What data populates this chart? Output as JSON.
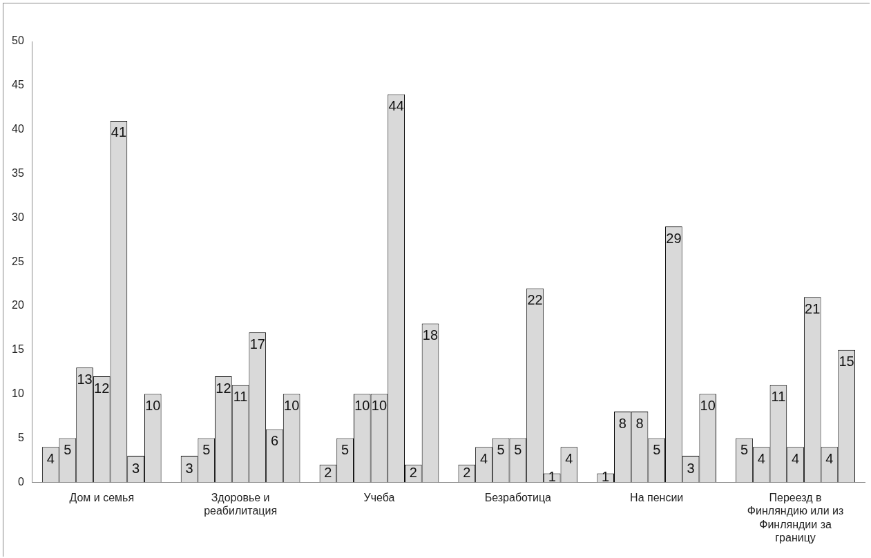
{
  "chart_data": {
    "type": "bar",
    "categories": [
      "Дом и семья",
      "Здоровье и реабилитация",
      "Учеба",
      "Безработица",
      "На пенсии",
      "Переезд в Финляндию или из Финляндии за границу"
    ],
    "series": [
      {
        "color": "#d9d9d9",
        "values": [
          4,
          3,
          2,
          2,
          1,
          5
        ]
      },
      {
        "color": "#d9d9d9",
        "values": [
          5,
          5,
          5,
          4,
          8,
          4
        ]
      },
      {
        "color": "#d9d9d9",
        "values": [
          13,
          12,
          10,
          5,
          8,
          11
        ]
      },
      {
        "color": "#d9d9d9",
        "values": [
          12,
          11,
          10,
          5,
          5,
          4
        ]
      },
      {
        "color": "#d9d9d9",
        "values": [
          41,
          17,
          44,
          22,
          29,
          21
        ]
      },
      {
        "color": "#d9d9d9",
        "values": [
          3,
          6,
          2,
          1,
          3,
          4
        ]
      },
      {
        "color": "#d9d9d9",
        "values": [
          10,
          10,
          18,
          4,
          10,
          15
        ]
      }
    ],
    "ylim": [
      0,
      50
    ],
    "yticks": [
      0,
      5,
      10,
      15,
      20,
      25,
      30,
      35,
      40,
      45,
      50
    ],
    "grid": false,
    "legend": false,
    "data_labels": true
  }
}
